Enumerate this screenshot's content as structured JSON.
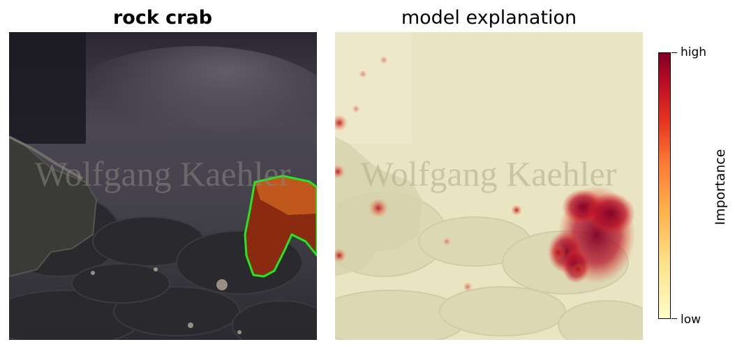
{
  "left_panel": {
    "title": "rock crab",
    "watermark": "Wolfgang Kaehler",
    "outline_color": "#22e81e"
  },
  "right_panel": {
    "title": "model explanation",
    "watermark": "Wolfgang Kaehler"
  },
  "colorbar": {
    "label": "Importance",
    "high_label": "high",
    "low_label": "low",
    "colormap": "YlOrRd",
    "colors": [
      "#fffdc6",
      "#fee48c",
      "#feb24c",
      "#fd7c36",
      "#e7311f",
      "#b50b26",
      "#800026"
    ]
  }
}
